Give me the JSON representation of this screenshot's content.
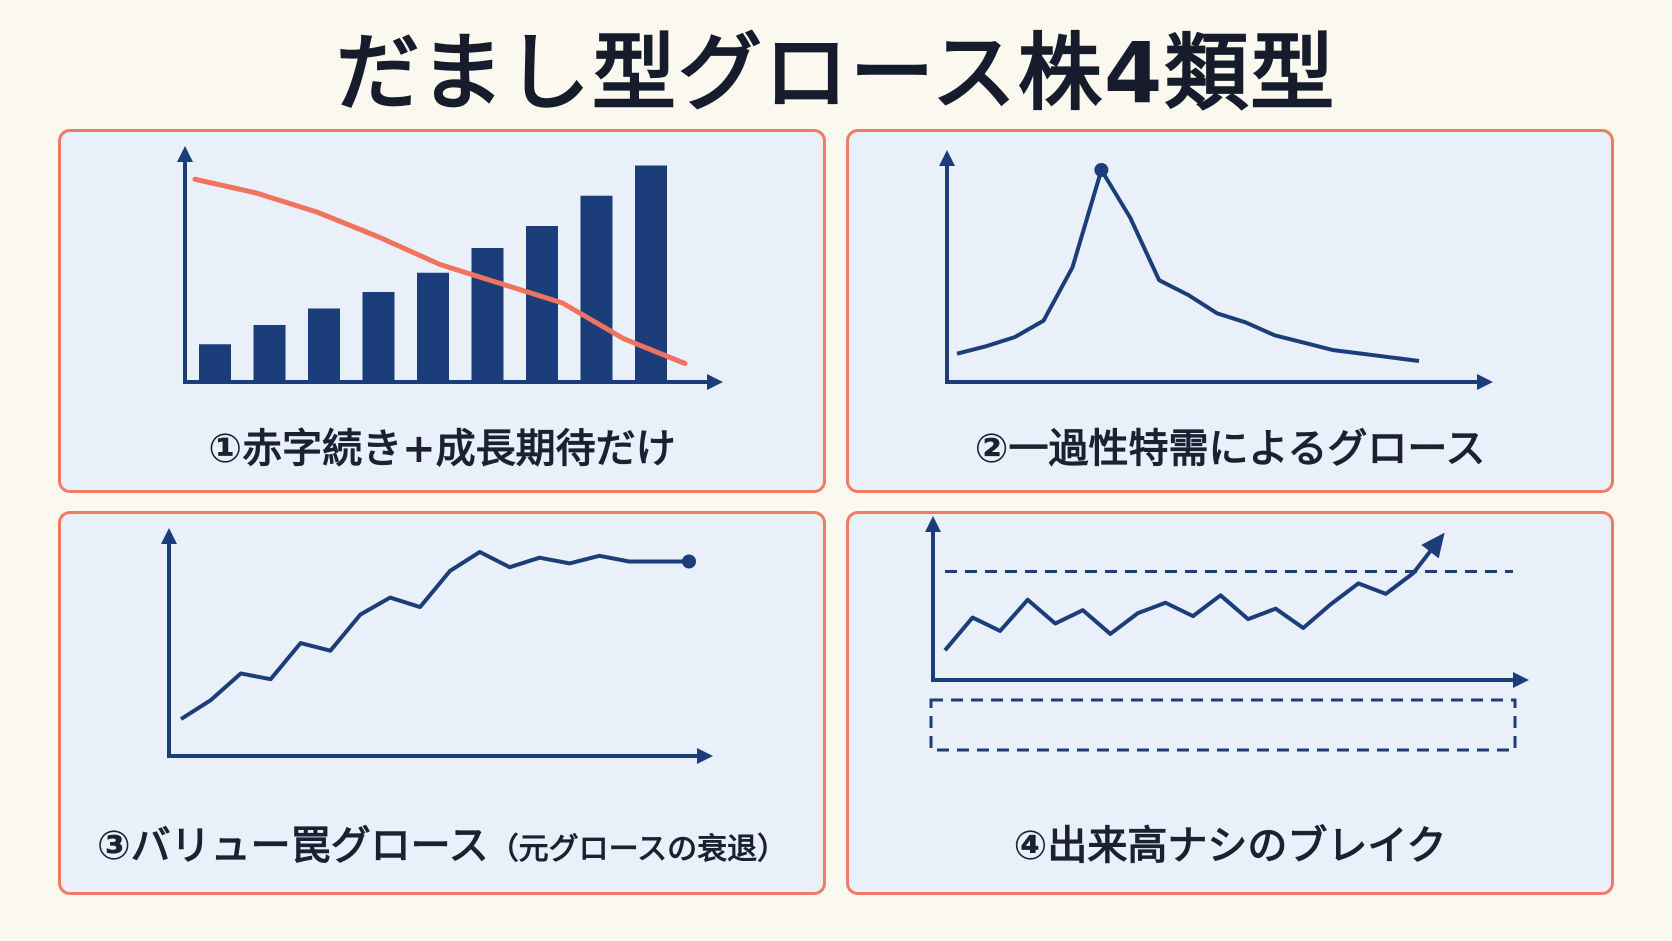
{
  "title": "だまし型グロース株4類型",
  "colors": {
    "background": "#fbf8ef",
    "panel_fill": "#eaf0f9",
    "panel_border": "#ef7b62",
    "navy": "#1b3d7a",
    "red_line": "#f0735f"
  },
  "panels": [
    {
      "caption": "①赤字続き+成長期待だけ",
      "chart_data": {
        "type": "bar",
        "series": [
          {
            "type": "bar",
            "values": [
              1.3,
              2.0,
              2.6,
              3.2,
              3.9,
              4.8,
              5.6,
              6.7,
              7.8
            ]
          },
          {
            "type": "line",
            "values": [
              7.3,
              6.8,
              6.1,
              5.2,
              4.2,
              3.5,
              2.8,
              1.5,
              0.6
            ]
          }
        ]
      }
    },
    {
      "caption": "②一過性特需によるグロース",
      "chart_data": {
        "type": "line",
        "values": [
          1.0,
          1.4,
          1.9,
          2.8,
          5.7,
          11.0,
          8.4,
          5.0,
          4.2,
          3.2,
          2.7,
          2.0,
          1.6,
          1.2,
          1.0,
          0.8,
          0.6
        ],
        "peak_marker": true
      }
    },
    {
      "caption": "③バリュー罠グロース",
      "caption_note": "（元グロースの衰退）",
      "chart_data": {
        "type": "line",
        "values": [
          1.0,
          2.0,
          3.4,
          3.1,
          5.0,
          4.6,
          6.5,
          7.4,
          6.9,
          8.8,
          9.8,
          9.0,
          9.5,
          9.2,
          9.6,
          9.3,
          9.3,
          9.3
        ],
        "end_marker": true
      }
    },
    {
      "caption": "④出来高ナシのブレイク",
      "chart_data": {
        "type": "line",
        "values": [
          2.0,
          4.2,
          3.3,
          5.4,
          3.8,
          4.7,
          3.1,
          4.5,
          5.2,
          4.3,
          5.7,
          4.1,
          4.8,
          3.5,
          5.1,
          6.5,
          5.8,
          7.2,
          9.6
        ],
        "resistance_level": 7.3,
        "breakout_arrow": true,
        "volume_box": "empty"
      }
    }
  ]
}
